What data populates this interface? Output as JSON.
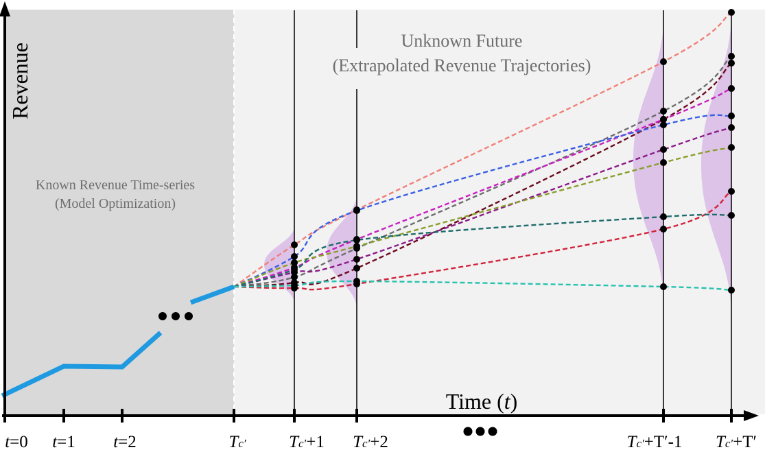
{
  "axes": {
    "y_label": "Revenue",
    "x_label_prefix": "Time (",
    "x_label_var": "t",
    "x_label_suffix": ")"
  },
  "regions": {
    "known_line1": "Known Revenue Time-series",
    "known_line2": "(Model Optimization)",
    "future_line1": "Unknown Future",
    "future_line2": "(Extrapolated Revenue Trajectories)"
  },
  "ticks": {
    "t0": {
      "var": "t",
      "rest": "=0"
    },
    "t1": {
      "var": "t",
      "rest": "=1"
    },
    "t2": {
      "var": "t",
      "rest": "=2"
    },
    "tc": {
      "T": "T",
      "sub": "c′",
      "rest": ""
    },
    "tc1": {
      "T": "T",
      "sub": "c′",
      "rest": "+1"
    },
    "tc2": {
      "T": "T",
      "sub": "c′",
      "rest": "+2"
    },
    "tcT1": {
      "T": "T",
      "sub": "c′",
      "rest": "+T′-1"
    },
    "tcT": {
      "T": "T",
      "sub": "c′",
      "rest": "+T′"
    }
  },
  "colors": {
    "known_series": "#1f9ae0",
    "known_region": "#d9d9d9",
    "future_region": "#f2f2f2",
    "density": "#d4b3e3",
    "trajectories": [
      "#f08078",
      "#6e6e6e",
      "#6b0a1e",
      "#c81fc0",
      "#3a5fe6",
      "#8b1a8b",
      "#8a9e2c",
      "#d2243a",
      "#1f6b6b",
      "#28c2b0"
    ]
  }
}
